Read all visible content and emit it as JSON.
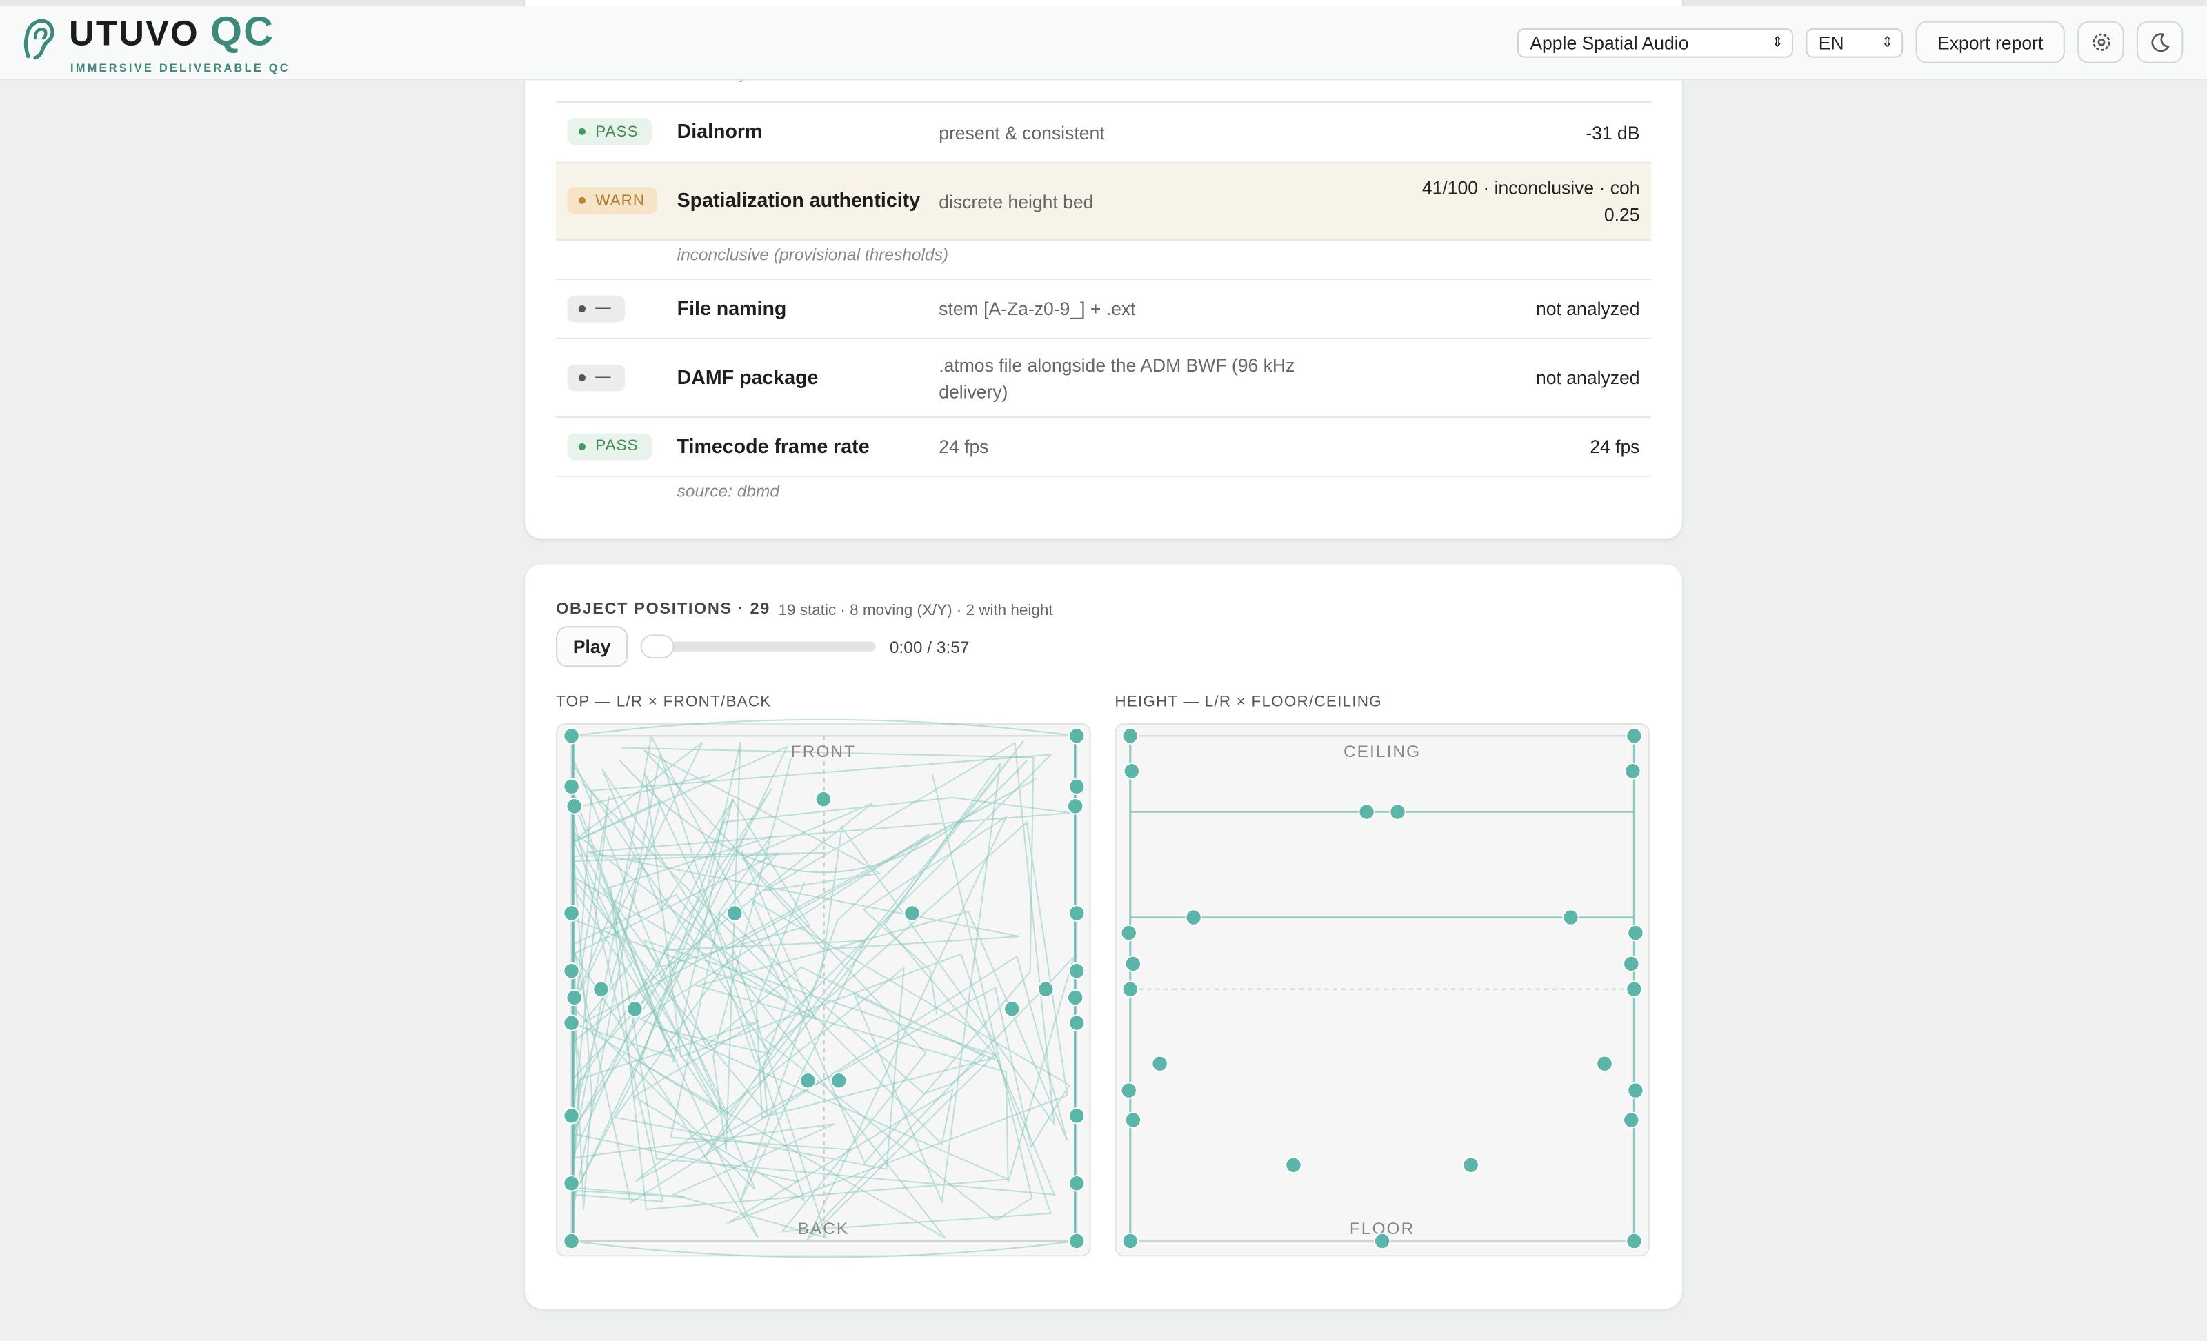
{
  "header": {
    "brand": "UTUVO",
    "brand_accent": "QC",
    "tagline": "IMMERSIVE DELIVERABLE QC",
    "format_select": "Apple Spatial Audio",
    "language_select": "EN",
    "export_button": "Export report"
  },
  "checks": {
    "truncated_note": "album in your DAW",
    "rows": [
      {
        "status": "PASS",
        "name": "Dialnorm",
        "expected": "present & consistent",
        "result": "-31 dB"
      },
      {
        "status": "WARN",
        "name": "Spatialization authenticity",
        "expected": "discrete height bed",
        "result": "41/100 · inconclusive · coh 0.25",
        "note": "inconclusive (provisional thresholds)"
      },
      {
        "status": "—",
        "name": "File naming",
        "expected": "stem [A-Za-z0-9_] + .ext",
        "result": "not analyzed"
      },
      {
        "status": "—",
        "name": "DAMF package",
        "expected": ".atmos file alongside the ADM BWF (96 kHz delivery)",
        "result": "not analyzed"
      },
      {
        "status": "PASS",
        "name": "Timecode frame rate",
        "expected": "24 fps",
        "result": "24 fps",
        "note": "source: dbmd"
      }
    ]
  },
  "objects": {
    "title": "OBJECT POSITIONS · 29",
    "summary": "19 static · 8 moving (X/Y) · 2 with height",
    "play_button": "Play",
    "time": "0:00 / 3:57",
    "top_view": {
      "title": "TOP — L/R × FRONT/BACK",
      "front": "FRONT",
      "back": "BACK"
    },
    "height_view": {
      "title": "HEIGHT — L/R × FLOOR/CEILING",
      "ceiling": "CEILING",
      "floor": "FLOOR"
    }
  }
}
